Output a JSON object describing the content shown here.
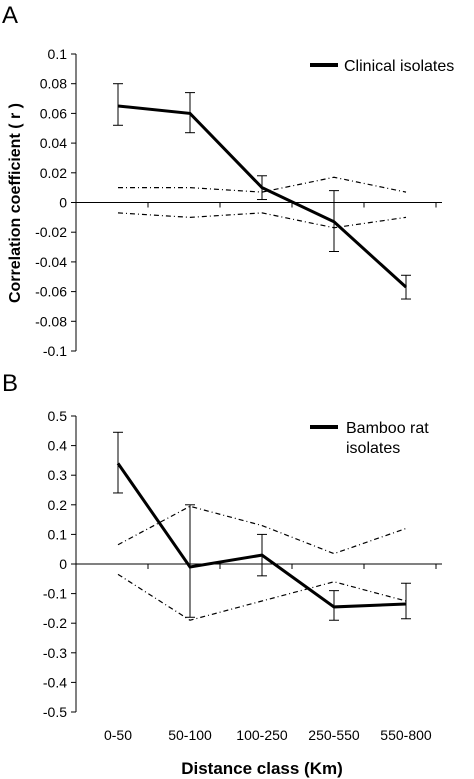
{
  "figure": {
    "xlabel": "Distance class (Km)",
    "ylabel": "Correlation coefficient ( r )"
  },
  "chart_data": [
    {
      "panel": "A",
      "type": "line",
      "categories": [
        "0-50",
        "50-100",
        "100-250",
        "250-550",
        "550-800"
      ],
      "ylim": [
        -0.1,
        0.1
      ],
      "yticks": [
        "0.1",
        "0.08",
        "0.06",
        "0.04",
        "0.02",
        "0",
        "-0.02",
        "-0.04",
        "-0.06",
        "-0.08",
        "-0.1"
      ],
      "ytick_values": [
        0.1,
        0.08,
        0.06,
        0.04,
        0.02,
        0,
        -0.02,
        -0.04,
        -0.06,
        -0.08,
        -0.1
      ],
      "grid": false,
      "legend_position": "top-right",
      "series": [
        {
          "name": "Clinical isolates",
          "role": "observed",
          "values": [
            0.065,
            0.06,
            0.01,
            -0.013,
            -0.057
          ],
          "error_low": [
            0.052,
            0.047,
            0.002,
            -0.033,
            -0.065
          ],
          "error_high": [
            0.08,
            0.074,
            0.018,
            0.008,
            -0.049
          ]
        },
        {
          "role": "upper-confidence",
          "values": [
            0.01,
            0.01,
            0.007,
            0.017,
            0.007
          ]
        },
        {
          "role": "lower-confidence",
          "values": [
            -0.007,
            -0.01,
            -0.007,
            -0.017,
            -0.01
          ]
        }
      ]
    },
    {
      "panel": "B",
      "type": "line",
      "categories": [
        "0-50",
        "50-100",
        "100-250",
        "250-550",
        "550-800"
      ],
      "ylim": [
        -0.5,
        0.5
      ],
      "yticks": [
        "0.5",
        "0.4",
        "0.3",
        "0.2",
        "0.1",
        "0",
        "-0.1",
        "-0.2",
        "-0.3",
        "-0.4",
        "-0.5"
      ],
      "ytick_values": [
        0.5,
        0.4,
        0.3,
        0.2,
        0.1,
        0,
        -0.1,
        -0.2,
        -0.3,
        -0.4,
        -0.5
      ],
      "grid": false,
      "legend_position": "top-right",
      "series": [
        {
          "name": "Bamboo rat isolates",
          "legend_lines": [
            "Bamboo rat",
            "isolates"
          ],
          "role": "observed",
          "values": [
            0.34,
            -0.01,
            0.03,
            -0.145,
            -0.135
          ],
          "error_low": [
            0.24,
            -0.18,
            -0.04,
            -0.19,
            -0.185
          ],
          "error_high": [
            0.445,
            0.2,
            0.1,
            -0.09,
            -0.065
          ]
        },
        {
          "role": "upper-confidence",
          "values": [
            0.065,
            0.195,
            0.13,
            0.035,
            0.12
          ]
        },
        {
          "role": "lower-confidence",
          "values": [
            -0.035,
            -0.19,
            -0.125,
            -0.06,
            -0.125
          ]
        }
      ]
    }
  ]
}
